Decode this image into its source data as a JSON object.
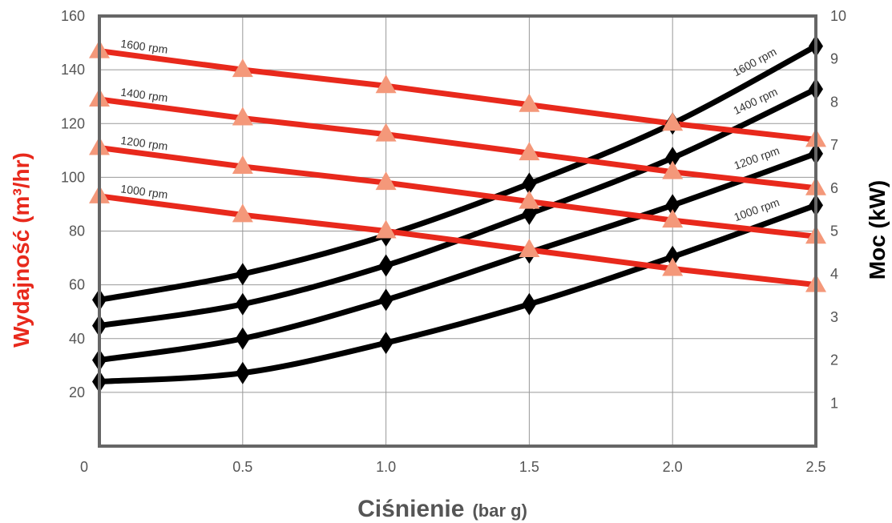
{
  "chart_data": {
    "type": "line",
    "title": "",
    "xlabel": "Ciśnienie",
    "xlabel_unit": "(bar g)",
    "ylabel_left": "Wydajność (m³/hr)",
    "ylabel_right": "Moc (kW)",
    "x": [
      0,
      0.5,
      1.0,
      1.5,
      2.0,
      2.5
    ],
    "x_tick_labels": [
      "0",
      "0.5",
      "1.0",
      "1.5",
      "2.0",
      "2.5"
    ],
    "xlim": [
      0,
      2.5
    ],
    "ylim_left": [
      0,
      160
    ],
    "ylim_right": [
      0,
      10
    ],
    "y_left_ticks": [
      20,
      40,
      60,
      80,
      100,
      120,
      140,
      160
    ],
    "y_right_ticks": [
      1,
      2,
      3,
      4,
      5,
      6,
      7,
      8,
      9,
      10
    ],
    "grid": true,
    "colors": {
      "capacity_line": "#e8291c",
      "capacity_marker": "#f4987a",
      "power_line": "#000000",
      "axis": "#666666",
      "grid": "#999999"
    },
    "capacity_series": [
      {
        "label": "1600 rpm",
        "axis": "left",
        "values": [
          147,
          140,
          134,
          127,
          120,
          114
        ]
      },
      {
        "label": "1400 rpm",
        "axis": "left",
        "values": [
          129,
          122,
          116,
          109,
          102,
          96
        ]
      },
      {
        "label": "1200 rpm",
        "axis": "left",
        "values": [
          111,
          104,
          98,
          91,
          84,
          78
        ]
      },
      {
        "label": "1000 rpm",
        "axis": "left",
        "values": [
          93,
          86,
          80,
          73,
          66,
          60
        ]
      }
    ],
    "power_series": [
      {
        "label": "1600 rpm",
        "axis": "right",
        "values": [
          3.4,
          4.0,
          4.9,
          6.1,
          7.5,
          9.3
        ]
      },
      {
        "label": "1400 rpm",
        "axis": "right",
        "values": [
          2.8,
          3.3,
          4.2,
          5.4,
          6.7,
          8.3
        ]
      },
      {
        "label": "1200 rpm",
        "axis": "right",
        "values": [
          2.0,
          2.5,
          3.4,
          4.5,
          5.6,
          6.8
        ]
      },
      {
        "label": "1000 rpm",
        "axis": "right",
        "values": [
          1.5,
          1.7,
          2.4,
          3.3,
          4.4,
          5.6
        ]
      }
    ]
  }
}
